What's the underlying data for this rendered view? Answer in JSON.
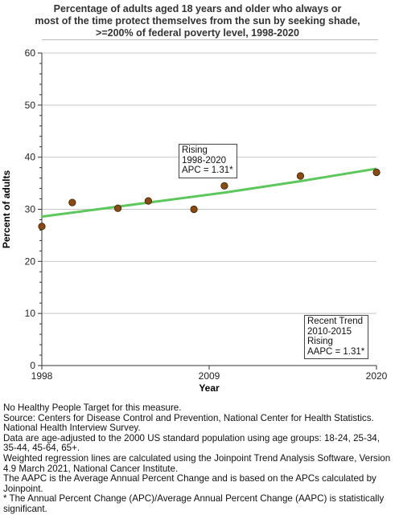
{
  "chart_data": {
    "type": "scatter",
    "title": "Percentage of adults aged 18 years and older who always or\nmost of the time protect themselves from the sun by seeking shade,\n>=200% of federal poverty level,  1998-2020",
    "xlabel": "Year",
    "ylabel": "Percent of adults",
    "xlim": [
      1998,
      2020
    ],
    "ylim": [
      0,
      60
    ],
    "xticks": [
      1998,
      2009,
      2020
    ],
    "yticks": [
      0,
      10,
      20,
      30,
      40,
      50,
      60
    ],
    "grid": true,
    "points": [
      {
        "x": 1998,
        "y": 26.7
      },
      {
        "x": 2000,
        "y": 31.3
      },
      {
        "x": 2003,
        "y": 30.2
      },
      {
        "x": 2005,
        "y": 31.6
      },
      {
        "x": 2008,
        "y": 30.0
      },
      {
        "x": 2010,
        "y": 34.5
      },
      {
        "x": 2015,
        "y": 36.4
      },
      {
        "x": 2020,
        "y": 37.1
      }
    ],
    "trend": [
      {
        "x": 1998,
        "y": 28.6
      },
      {
        "x": 2010,
        "y": 33.2
      },
      {
        "x": 2015,
        "y": 35.4
      },
      {
        "x": 2020,
        "y": 37.8
      }
    ],
    "colors": {
      "point": "#8B4A0F",
      "point_edge": "#3a1d04",
      "trend": "#5CC85C",
      "grid": "#c8c8c8",
      "axis": "#333333"
    },
    "annotations": [
      {
        "id": "rising",
        "text": "Rising\n1998-2020\nAPC =  1.31*"
      },
      {
        "id": "recent",
        "text": "Recent Trend\n2010-2015\nRising\nAAPC =  1.31*"
      }
    ]
  },
  "notes": [
    "No Healthy People Target for this measure.",
    "Source: Centers for Disease Control and Prevention, National Center for Health Statistics. National Health Interview Survey.",
    "Data are age-adjusted to the 2000 US standard population using age groups: 18-24, 25-34, 35-44, 45-64, 65+.",
    "Weighted regression lines are calculated using the Joinpoint Trend Analysis Software, Version 4.9 March 2021, National Cancer Institute.",
    "The AAPC is the Average Annual Percent Change and is based on the APCs calculated by Joinpoint.",
    "* The Annual Percent Change (APC)/Average Annual Percent Change (AAPC) is statistically significant."
  ]
}
